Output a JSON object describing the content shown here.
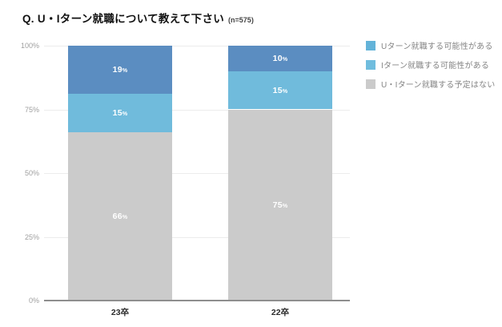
{
  "header": {
    "title": "Q. U・Iターン就職について教えて下さい",
    "sample_size": "(n=575)"
  },
  "colors": {
    "series": [
      "#5B8DC1",
      "#70BBDC",
      "#CBCBCB"
    ],
    "legend_swatches": [
      "#63B3D9",
      "#70BDDE",
      "#CBCBCB"
    ],
    "gridline": "#ECECEC",
    "axis_line": "#8E8E8E",
    "tick_text": "#9E9E9E",
    "legend_text": "#858585",
    "bar_value_text": "#FFFFFF"
  },
  "chart_data": {
    "type": "bar",
    "stacked": true,
    "title": "Q. U・Iターン就職について教えて下さい (n=575)",
    "categories": [
      "23卒",
      "22卒"
    ],
    "series": [
      {
        "name": "Uターン就職する可能性がある",
        "values": [
          19,
          10
        ]
      },
      {
        "name": "Iターン就職する可能性がある",
        "values": [
          15,
          15
        ]
      },
      {
        "name": "U・Iターン就職する予定はない",
        "values": [
          66,
          75
        ]
      }
    ],
    "value_suffix": "%",
    "xlabel": "",
    "ylabel": "",
    "ylim": [
      0,
      100
    ],
    "yticks": [
      {
        "label": "100%",
        "value": 100
      },
      {
        "label": "75%",
        "value": 75
      },
      {
        "label": "50%",
        "value": 50
      },
      {
        "label": "25%",
        "value": 25
      },
      {
        "label": "0%",
        "value": 0
      }
    ],
    "grid": true,
    "legend_position": "right"
  },
  "legend": {
    "items": [
      {
        "label": "Uターン就職する可能性がある"
      },
      {
        "label": "Iターン就職する可能性がある"
      },
      {
        "label": "U・Iターン就職する予定はない"
      }
    ]
  }
}
